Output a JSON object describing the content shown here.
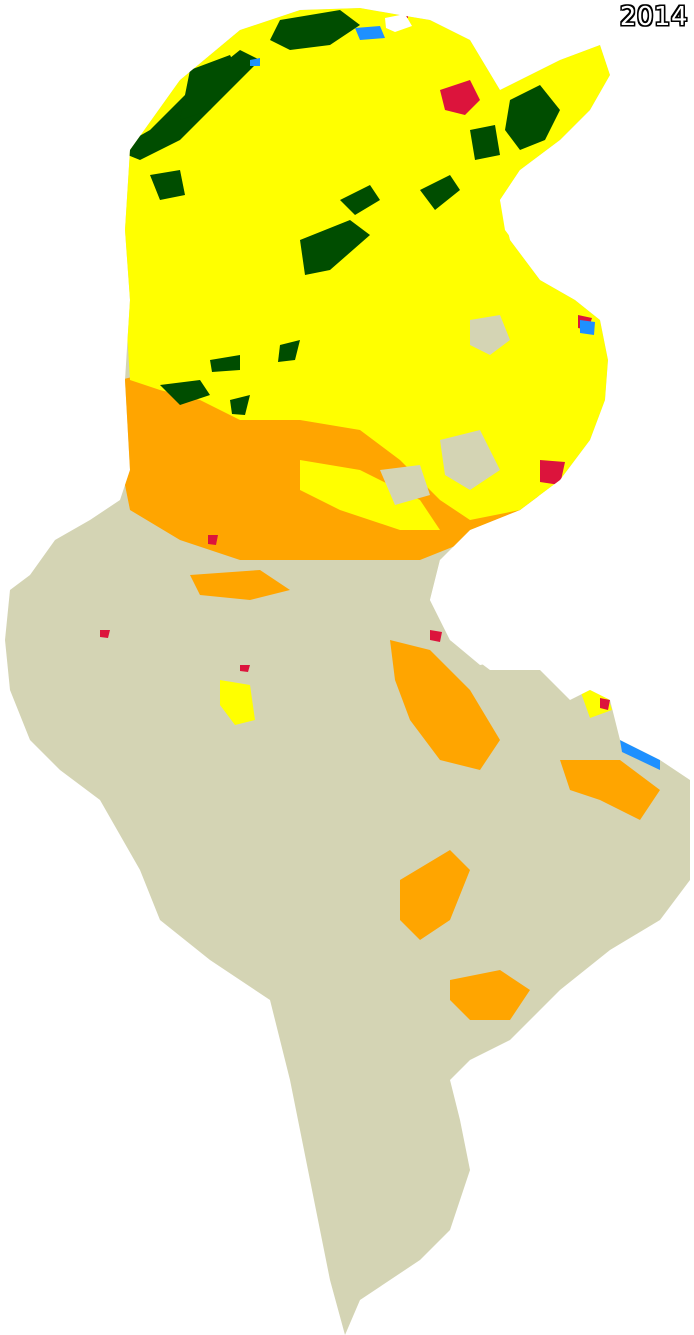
{
  "map": {
    "year_label": "2014",
    "colors": {
      "background": "#ffffff",
      "bare_land": "#d4d4b4",
      "cropland": "#ffff00",
      "shrubland": "#ffa500",
      "forest": "#004d00",
      "urban": "#dc143c",
      "water": "#1e90ff"
    }
  }
}
